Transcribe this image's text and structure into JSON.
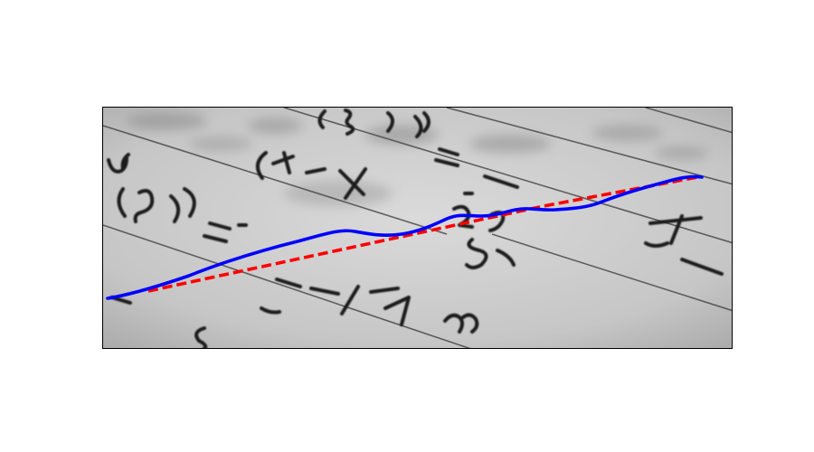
{
  "figure": {
    "background_color": "#ffffff",
    "frame_color": "#000000"
  },
  "photo": {
    "subject": "handwritten-math-notes-on-lined-paper",
    "tone": "grayscale",
    "paper_color": "#cfcfcf",
    "ink_color": "#1e1e1e",
    "rule_line_color": "#4a4a4a"
  },
  "overlay_lines": [
    {
      "id": "detected-edge-curve",
      "color": "#0000ff",
      "style": "solid"
    },
    {
      "id": "fitted-straight-line",
      "color": "#ff0000",
      "style": "dashed"
    }
  ]
}
